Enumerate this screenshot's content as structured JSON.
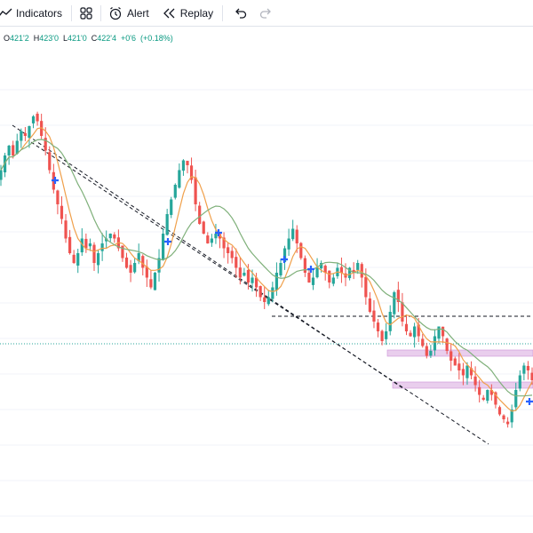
{
  "toolbar": {
    "indicators_label": "Indicators",
    "alert_label": "Alert",
    "replay_label": "Replay",
    "icons": [
      "indicators-icon",
      "layout-grid-icon",
      "alert-clock-icon",
      "replay-icon",
      "undo-icon",
      "redo-icon"
    ]
  },
  "legend": {
    "open_label": "O",
    "open": "421'2",
    "high_label": "H",
    "high": "423'0",
    "low_label": "L",
    "low": "421'0",
    "close_label": "C",
    "close": "422'4",
    "change": "+0'6",
    "change_pct": "(+0.18%)"
  },
  "colors": {
    "up": "#26a69a",
    "down": "#ef5350",
    "ma_fast": "#f0a04b",
    "ma_slow": "#7fb07a",
    "marker": "#2962ff",
    "zone": "#e1bee7",
    "zone_border": "#ce93d8",
    "dotted_line": "#26a69a",
    "grid": "#f0f3fa"
  },
  "chart_data": {
    "type": "candlestick",
    "title": "",
    "grid": true,
    "closes": [
      447,
      450,
      452,
      450,
      453,
      455,
      454,
      456,
      458,
      457,
      454,
      451,
      447,
      443,
      440,
      437,
      433,
      430,
      428,
      430,
      433,
      431,
      432,
      428,
      430,
      432,
      433,
      434,
      433,
      431,
      429,
      427,
      426,
      428,
      430,
      427,
      425,
      423,
      426,
      429,
      434,
      438,
      441,
      444,
      447,
      449,
      448,
      445,
      440,
      436,
      434,
      432,
      433,
      434,
      433,
      431,
      430,
      429,
      427,
      425,
      426,
      424,
      425,
      423,
      421,
      420,
      421,
      423,
      426,
      428,
      431,
      433,
      435,
      432,
      429,
      426,
      424,
      425,
      427,
      428,
      426,
      424,
      425,
      427,
      426,
      425,
      427,
      426,
      428,
      425,
      421,
      418,
      416,
      414,
      412,
      414,
      418,
      422,
      420,
      416,
      414,
      413,
      415,
      413,
      411,
      409,
      410,
      413,
      415,
      413,
      410,
      408,
      407,
      406,
      405,
      407,
      405,
      403,
      401,
      400,
      402,
      401,
      399,
      397,
      396,
      395,
      398,
      402,
      405,
      407,
      406,
      404
    ]
  }
}
